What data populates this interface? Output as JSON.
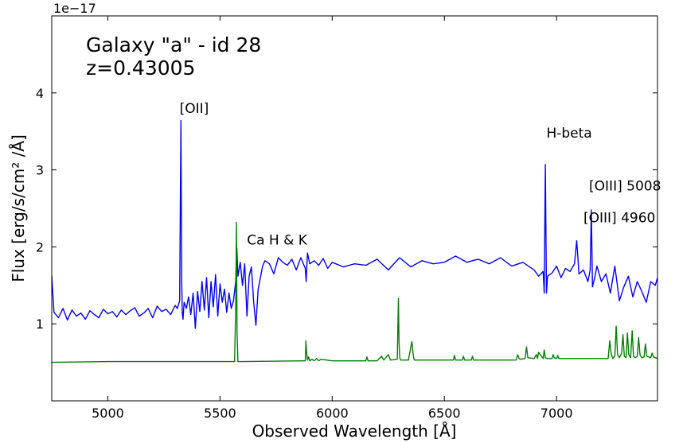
{
  "chart_data": {
    "type": "line",
    "title_lines": [
      "Galaxy \"a\" - id 28",
      "z=0.43005"
    ],
    "xlabel": "Observed Wavelength [Å]",
    "ylabel": "Flux [erg/s/cm² /Å]",
    "offset_label": "1e−17",
    "xlim": [
      4750,
      7450
    ],
    "ylim": [
      0.0,
      5.0
    ],
    "y_multiplier": 1e-17,
    "x_ticks": [
      5000,
      5500,
      6000,
      6500,
      7000
    ],
    "x_tick_labels": [
      "5000",
      "5500",
      "6000",
      "6500",
      "7000"
    ],
    "y_ticks": [
      1,
      2,
      3,
      4
    ],
    "y_tick_labels": [
      "1",
      "2",
      "3",
      "4"
    ],
    "grid": false,
    "series": [
      {
        "color": "#0000ff",
        "x": [
          4750,
          4760,
          4780,
          4800,
          4820,
          4840,
          4860,
          4880,
          4900,
          4920,
          4940,
          4960,
          4980,
          5000,
          5020,
          5040,
          5060,
          5080,
          5100,
          5120,
          5140,
          5160,
          5180,
          5200,
          5220,
          5240,
          5260,
          5280,
          5300,
          5310,
          5320,
          5323,
          5326,
          5329,
          5332,
          5335,
          5340,
          5350,
          5360,
          5370,
          5380,
          5390,
          5400,
          5410,
          5420,
          5430,
          5440,
          5450,
          5460,
          5470,
          5480,
          5490,
          5500,
          5510,
          5520,
          5530,
          5540,
          5550,
          5560,
          5570,
          5575,
          5580,
          5590,
          5600,
          5610,
          5620,
          5630,
          5640,
          5650,
          5660,
          5670,
          5680,
          5690,
          5700,
          5720,
          5740,
          5760,
          5780,
          5800,
          5820,
          5840,
          5860,
          5880,
          5884,
          5890,
          5900,
          5920,
          5940,
          5960,
          5980,
          6000,
          6050,
          6100,
          6150,
          6200,
          6250,
          6300,
          6350,
          6400,
          6450,
          6500,
          6550,
          6600,
          6650,
          6700,
          6750,
          6800,
          6850,
          6880,
          6900,
          6920,
          6940,
          6945,
          6950,
          6955,
          6960,
          6980,
          7000,
          7020,
          7040,
          7060,
          7080,
          7090,
          7100,
          7120,
          7140,
          7150,
          7155,
          7160,
          7170,
          7180,
          7200,
          7220,
          7240,
          7260,
          7280,
          7300,
          7320,
          7340,
          7360,
          7380,
          7400,
          7420,
          7440,
          7450
        ],
        "y": [
          1.63,
          1.15,
          1.08,
          1.2,
          1.05,
          1.18,
          1.1,
          1.14,
          1.06,
          1.17,
          1.12,
          1.08,
          1.19,
          1.13,
          1.16,
          1.09,
          1.18,
          1.12,
          1.17,
          1.21,
          1.1,
          1.14,
          1.2,
          1.08,
          1.23,
          1.16,
          1.19,
          1.12,
          1.24,
          1.2,
          1.3,
          2.5,
          3.64,
          1.6,
          1.14,
          1.06,
          1.28,
          1.2,
          1.35,
          1.12,
          1.4,
          0.94,
          1.42,
          1.16,
          1.55,
          1.18,
          1.6,
          1.08,
          1.55,
          1.22,
          1.64,
          1.1,
          1.52,
          1.28,
          1.45,
          1.15,
          1.4,
          1.2,
          1.3,
          1.55,
          1.98,
          1.62,
          1.8,
          1.5,
          1.78,
          1.1,
          1.62,
          1.74,
          1.28,
          0.98,
          1.45,
          1.6,
          1.75,
          1.82,
          1.78,
          1.65,
          1.86,
          1.8,
          1.76,
          1.84,
          1.7,
          1.86,
          1.72,
          1.55,
          1.92,
          1.78,
          1.82,
          1.76,
          1.85,
          1.72,
          1.8,
          1.74,
          1.78,
          1.76,
          1.84,
          1.7,
          1.86,
          1.74,
          1.82,
          1.78,
          1.8,
          1.88,
          1.8,
          1.84,
          1.78,
          1.86,
          1.75,
          1.8,
          1.74,
          1.7,
          1.62,
          1.68,
          1.4,
          3.07,
          1.4,
          1.62,
          1.66,
          1.75,
          1.6,
          1.72,
          1.68,
          1.78,
          2.08,
          1.65,
          1.7,
          1.55,
          1.7,
          2.48,
          1.48,
          1.6,
          1.75,
          1.55,
          1.65,
          1.4,
          1.75,
          1.3,
          1.48,
          1.62,
          1.35,
          1.55,
          1.42,
          1.28,
          1.55,
          1.5,
          1.6
        ]
      },
      {
        "color": "#008000",
        "x": [
          4750,
          5000,
          5500,
          5565,
          5570,
          5573,
          5576,
          5580,
          5600,
          5880,
          5883,
          5886,
          5890,
          5895,
          5900,
          5910,
          5920,
          5930,
          5940,
          5950,
          6000,
          6100,
          6150,
          6155,
          6160,
          6200,
          6220,
          6230,
          6250,
          6260,
          6290,
          6295,
          6298,
          6301,
          6305,
          6340,
          6355,
          6362,
          6366,
          6370,
          6400,
          6450,
          6500,
          6540,
          6545,
          6550,
          6580,
          6585,
          6590,
          6620,
          6625,
          6630,
          6700,
          6820,
          6827,
          6833,
          6840,
          6860,
          6866,
          6872,
          6900,
          6910,
          6915,
          6920,
          6940,
          6945,
          6950,
          6960,
          6980,
          6985,
          6990,
          7000,
          7005,
          7010,
          7200,
          7230,
          7237,
          7243,
          7250,
          7260,
          7266,
          7272,
          7280,
          7290,
          7296,
          7302,
          7310,
          7316,
          7322,
          7330,
          7337,
          7343,
          7350,
          7360,
          7366,
          7372,
          7380,
          7390,
          7396,
          7402,
          7420,
          7426,
          7432,
          7450
        ],
        "y": [
          0.5,
          0.51,
          0.51,
          0.51,
          1.2,
          2.32,
          0.9,
          0.51,
          0.51,
          0.52,
          0.78,
          0.62,
          0.53,
          0.57,
          0.52,
          0.54,
          0.52,
          0.55,
          0.52,
          0.54,
          0.52,
          0.52,
          0.52,
          0.57,
          0.52,
          0.52,
          0.58,
          0.53,
          0.6,
          0.53,
          0.54,
          1.33,
          0.75,
          0.56,
          0.53,
          0.53,
          0.77,
          0.58,
          0.53,
          0.53,
          0.53,
          0.53,
          0.53,
          0.53,
          0.59,
          0.53,
          0.53,
          0.58,
          0.53,
          0.53,
          0.58,
          0.53,
          0.53,
          0.53,
          0.6,
          0.55,
          0.54,
          0.55,
          0.7,
          0.56,
          0.55,
          0.6,
          0.55,
          0.63,
          0.55,
          0.66,
          0.56,
          0.55,
          0.55,
          0.6,
          0.56,
          0.55,
          0.59,
          0.55,
          0.55,
          0.55,
          0.78,
          0.62,
          0.55,
          0.58,
          0.97,
          0.6,
          0.56,
          0.62,
          0.86,
          0.58,
          0.56,
          0.88,
          0.6,
          0.56,
          0.91,
          0.58,
          0.56,
          0.58,
          0.82,
          0.6,
          0.56,
          0.57,
          0.74,
          0.58,
          0.56,
          0.62,
          0.57,
          0.55
        ]
      }
    ],
    "annotations": [
      {
        "text": "[OII]",
        "x": 5320,
        "y": 3.74
      },
      {
        "text": "Ca H & K",
        "x": 5620,
        "y": 2.03
      },
      {
        "text": "H-beta",
        "x": 6955,
        "y": 3.42
      },
      {
        "text": "[OIII] 5008",
        "x": 7145,
        "y": 2.73
      },
      {
        "text": "[OIII] 4960",
        "x": 7120,
        "y": 2.32
      }
    ]
  }
}
